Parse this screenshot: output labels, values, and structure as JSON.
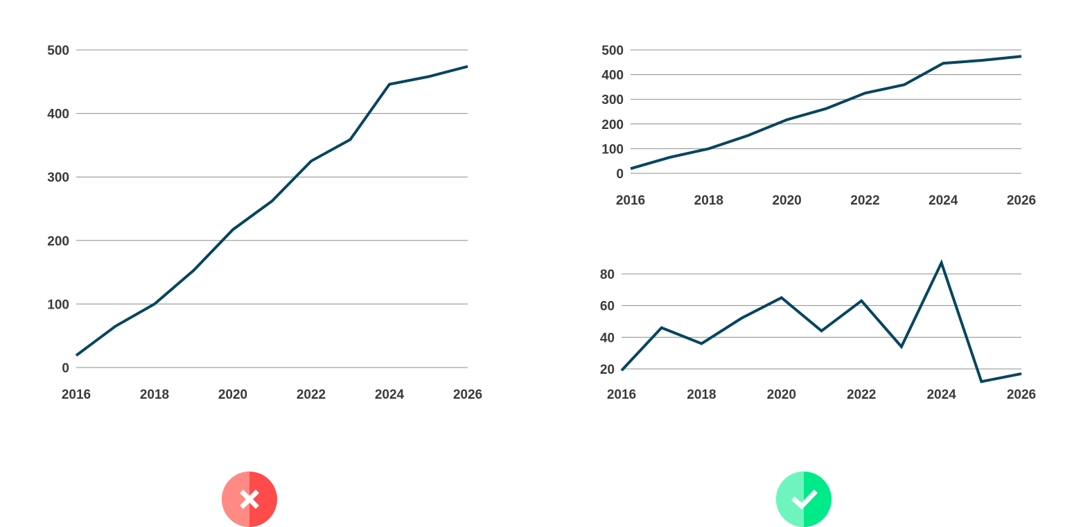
{
  "colors": {
    "line": "#064560",
    "bad": "#ff4b4b",
    "bad_light": "#ff8a84",
    "good": "#00ea8a",
    "good_light": "#6ef5bd",
    "mark": "#ffffff"
  },
  "badges": [
    {
      "kind": "bad",
      "icon": "x-mark-icon"
    },
    {
      "kind": "good",
      "icon": "check-mark-icon"
    }
  ],
  "chart_data": [
    {
      "type": "line",
      "title": "",
      "xlabel": "",
      "ylabel": "",
      "x": [
        2016,
        2017,
        2018,
        2019,
        2020,
        2021,
        2022,
        2023,
        2024,
        2025,
        2026
      ],
      "xticks": [
        "2016",
        "2018",
        "2020",
        "2022",
        "2024",
        "2026"
      ],
      "yticks": [
        "0",
        "100",
        "200",
        "300",
        "400",
        "500"
      ],
      "ylim": [
        0,
        500
      ],
      "grid": true,
      "series": [
        {
          "values": [
            19,
            65,
            100,
            153,
            217,
            262,
            325,
            359,
            446,
            458,
            474
          ]
        }
      ]
    },
    {
      "type": "line",
      "title": "",
      "xlabel": "",
      "ylabel": "",
      "x": [
        2016,
        2017,
        2018,
        2019,
        2020,
        2021,
        2022,
        2023,
        2024,
        2025,
        2026
      ],
      "xticks": [
        "2016",
        "2018",
        "2020",
        "2022",
        "2024",
        "2026"
      ],
      "yticks": [
        "0",
        "100",
        "200",
        "300",
        "400",
        "500"
      ],
      "ylim": [
        0,
        500
      ],
      "grid": true,
      "series": [
        {
          "values": [
            19,
            65,
            100,
            153,
            217,
            262,
            325,
            359,
            446,
            458,
            474
          ]
        }
      ]
    },
    {
      "type": "line",
      "title": "",
      "xlabel": "",
      "ylabel": "",
      "x": [
        2016,
        2017,
        2018,
        2019,
        2020,
        2021,
        2022,
        2023,
        2024,
        2025,
        2026
      ],
      "xticks": [
        "2016",
        "2018",
        "2020",
        "2022",
        "2024",
        "2026"
      ],
      "yticks": [
        "20",
        "40",
        "60",
        "80"
      ],
      "ylim": [
        20,
        80
      ],
      "grid": true,
      "series": [
        {
          "values": [
            19,
            46,
            36,
            52,
            65,
            44,
            63,
            34,
            87,
            12,
            17
          ]
        }
      ]
    }
  ]
}
